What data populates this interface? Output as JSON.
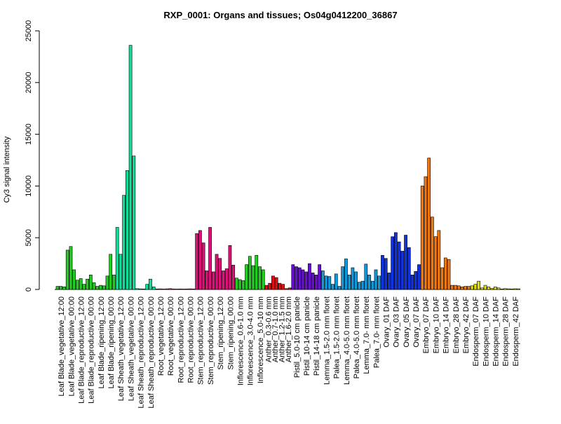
{
  "chart_data": {
    "type": "bar",
    "title": "RXP_0001: Organs and tissues; Os04g0412200_36867",
    "ylabel": "Cy3 signal intensity",
    "xlabel": "",
    "ylim": [
      0,
      25000
    ],
    "yticks": [
      0,
      5000,
      10000,
      15000,
      20000,
      25000
    ],
    "grid": false,
    "groups": [
      {
        "label": "Leaf Blade_vegetative_12:00",
        "color": "#22cc22",
        "values": [
          300,
          300,
          250
        ]
      },
      {
        "label": "Leaf Blade_vegetative_00:00",
        "color": "#22cc22",
        "values": [
          3800,
          4150,
          1900
        ]
      },
      {
        "label": "Leaf Blade_reproductive_12:00",
        "color": "#22cc22",
        "values": [
          900,
          1050,
          500
        ]
      },
      {
        "label": "Leaf Blade_reproductive_00:00",
        "color": "#22cc22",
        "values": [
          1000,
          1400,
          650
        ]
      },
      {
        "label": "Leaf Blade_ripening_12:00",
        "color": "#22cc22",
        "values": [
          300,
          400,
          350
        ]
      },
      {
        "label": "Leaf Blade_ripening_00:00",
        "color": "#22cc22",
        "values": [
          1300,
          3400,
          1400
        ]
      },
      {
        "label": "Leaf Sheath_vegetative_12:00",
        "color": "#11dd99",
        "values": [
          6000,
          3400,
          9100
        ]
      },
      {
        "label": "Leaf Sheath_vegetative_00:00",
        "color": "#11dd99",
        "values": [
          11500,
          23600,
          12900
        ]
      },
      {
        "label": "Leaf Sheath_reproductive_12:00",
        "color": "#11dd99",
        "values": [
          80,
          60,
          50
        ]
      },
      {
        "label": "Leaf Sheath_reproductive_00:00",
        "color": "#11dd99",
        "values": [
          500,
          1000,
          250
        ]
      },
      {
        "label": "Root_vegetative_12:00",
        "color": "#dd1177",
        "values": [
          50,
          60,
          40
        ]
      },
      {
        "label": "Root_vegetative_00:00",
        "color": "#dd1177",
        "values": [
          60,
          80,
          50
        ]
      },
      {
        "label": "Root_reproductive_12:00",
        "color": "#dd1177",
        "values": [
          40,
          50,
          40
        ]
      },
      {
        "label": "Root_reproductive_00:00",
        "color": "#dd1177",
        "values": [
          50,
          60,
          50
        ]
      },
      {
        "label": "Stem_reproductive_12:00",
        "color": "#dd1177",
        "values": [
          5400,
          5700,
          4500
        ]
      },
      {
        "label": "Stem_reproductive_00:00",
        "color": "#dd1177",
        "values": [
          1800,
          6000,
          1700
        ]
      },
      {
        "label": "Stem_ripening_12:00",
        "color": "#dd1177",
        "values": [
          3400,
          3000,
          1800
        ]
      },
      {
        "label": "Stem_ripening_00:00",
        "color": "#dd1177",
        "values": [
          2000,
          4250,
          2350
        ]
      },
      {
        "label": "Inflorescence_0.6-1.0 mm",
        "color": "#22cc22",
        "values": [
          1100,
          950,
          850
        ]
      },
      {
        "label": "Inflorescence_3.0-4.0 mm",
        "color": "#22cc22",
        "values": [
          2400,
          3200,
          2300
        ]
      },
      {
        "label": "Inflorescence_5.0-10 mm",
        "color": "#22cc22",
        "values": [
          3300,
          2200,
          1900
        ]
      },
      {
        "label": "Anther_0.3-0.6 mm",
        "color": "#dd1111",
        "values": [
          400,
          600
        ]
      },
      {
        "label": "Anther_0.7-1.0 mm",
        "color": "#dd1111",
        "values": [
          1300,
          1150
        ]
      },
      {
        "label": "Anther_1.2-1.5 mm",
        "color": "#dd1111",
        "values": [
          600,
          500
        ]
      },
      {
        "label": "Anther_1.6-2.0 mm",
        "color": "#dd1111",
        "values": [
          80,
          150
        ]
      },
      {
        "label": "Pistil_5.0-10 cm panicle",
        "color": "#6611cc",
        "values": [
          2400,
          2200,
          2100
        ]
      },
      {
        "label": "Pistil_10-14 cm panicle",
        "color": "#6611cc",
        "values": [
          1900,
          1700,
          2500
        ]
      },
      {
        "label": "Pistil_14-18 cm panicle",
        "color": "#6611cc",
        "values": [
          1600,
          1400,
          2400
        ]
      },
      {
        "label": "Lemma_1.5-2.0 mm floret",
        "color": "#1199dd",
        "values": [
          1800,
          1300,
          1250
        ]
      },
      {
        "label": "Palea_1.5-2.0 mm floret",
        "color": "#1199dd",
        "values": [
          500,
          1500,
          300
        ]
      },
      {
        "label": "Lemma_4.0-5.0 mm floret",
        "color": "#1199dd",
        "values": [
          2200,
          2950,
          1400
        ]
      },
      {
        "label": "Palea_4.0-5.0 mm floret",
        "color": "#1199dd",
        "values": [
          2100,
          1700,
          700
        ]
      },
      {
        "label": "Lemma_7.0- mm floret",
        "color": "#1199dd",
        "values": [
          800,
          2450,
          1400
        ]
      },
      {
        "label": "Palea_7.0- mm floret",
        "color": "#1199dd",
        "values": [
          800,
          1900,
          1300
        ]
      },
      {
        "label": "Ovary_01 DAF",
        "color": "#1133dd",
        "values": [
          3300,
          3000,
          1600
        ]
      },
      {
        "label": "Ovary_03 DAF",
        "color": "#1133dd",
        "values": [
          5100,
          5500,
          4600
        ]
      },
      {
        "label": "Ovary_05 DAF",
        "color": "#1133dd",
        "values": [
          3700,
          5250,
          4050
        ]
      },
      {
        "label": "Ovary_07 DAF",
        "color": "#1133dd",
        "values": [
          1400,
          1750,
          2400
        ]
      },
      {
        "label": "Embryo_07 DAF",
        "color": "#ee7711",
        "values": [
          10000,
          10900,
          12700
        ]
      },
      {
        "label": "Embryo_10 DAF",
        "color": "#ee7711",
        "values": [
          7000,
          5100,
          5700
        ]
      },
      {
        "label": "Embryo_14 DAF",
        "color": "#ee7711",
        "values": [
          2100,
          3050,
          2900
        ]
      },
      {
        "label": "Embryo_28 DAF",
        "color": "#ee7711",
        "values": [
          400,
          400,
          350
        ]
      },
      {
        "label": "Embryo_42 DAF",
        "color": "#ee7711",
        "values": [
          250,
          300,
          300
        ]
      },
      {
        "label": "Endosperm_07 DAF",
        "color": "#dddd11",
        "values": [
          350,
          500,
          800
        ]
      },
      {
        "label": "Endosperm_10 DAF",
        "color": "#dddd11",
        "values": [
          150,
          400,
          250
        ]
      },
      {
        "label": "Endosperm_14 DAF",
        "color": "#dddd11",
        "values": [
          100,
          250,
          150
        ]
      },
      {
        "label": "Endosperm_28 DAF",
        "color": "#dddd11",
        "values": [
          50,
          80,
          60
        ]
      },
      {
        "label": "Endosperm_42 DAF",
        "color": "#dddd11",
        "values": [
          50,
          70,
          60
        ]
      }
    ]
  }
}
